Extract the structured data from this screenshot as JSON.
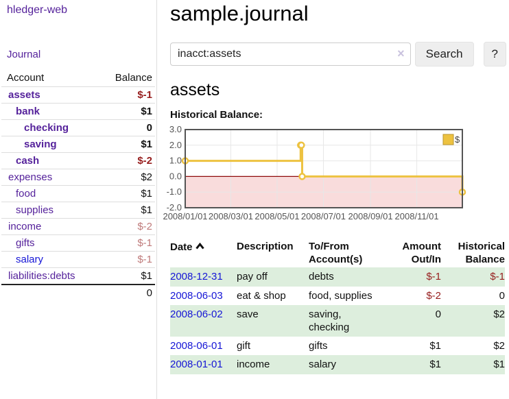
{
  "app": {
    "title": "hledger-web"
  },
  "sidebar": {
    "nav_journal": "Journal",
    "table": {
      "headers": {
        "account": "Account",
        "balance": "Balance"
      },
      "rows": [
        {
          "account": "assets",
          "balance": "$-1"
        },
        {
          "account": "bank",
          "balance": "$1"
        },
        {
          "account": "checking",
          "balance": "0"
        },
        {
          "account": "saving",
          "balance": "$1"
        },
        {
          "account": "cash",
          "balance": "$-2"
        },
        {
          "account": "expenses",
          "balance": "$2"
        },
        {
          "account": "food",
          "balance": "$1"
        },
        {
          "account": "supplies",
          "balance": "$1"
        },
        {
          "account": "income",
          "balance": "$-2"
        },
        {
          "account": "gifts",
          "balance": "$-1"
        },
        {
          "account": "salary",
          "balance": "$-1"
        },
        {
          "account": "liabilities:debts",
          "balance": "$1"
        }
      ],
      "total": "0"
    }
  },
  "main": {
    "title": "sample.journal",
    "search": {
      "value": "inacct:assets",
      "clear_icon": "×",
      "button": "Search",
      "help_button": "?"
    },
    "section_title": "assets",
    "chart_heading": "Historical Balance:"
  },
  "chart_data": {
    "type": "line",
    "step": true,
    "title": "Historical Balance:",
    "x_range": [
      "2008-01-01",
      "2008-12-31"
    ],
    "ylim": [
      -2,
      3
    ],
    "y_ticks": [
      3,
      2,
      1,
      0,
      -1,
      -2
    ],
    "x_ticks": [
      {
        "date": "2008-01-01",
        "label": "2008/01/01"
      },
      {
        "date": "2008-03-01",
        "label": "2008/03/01"
      },
      {
        "date": "2008-05-01",
        "label": "2008/05/01"
      },
      {
        "date": "2008-07-01",
        "label": "2008/07/01"
      },
      {
        "date": "2008-09-01",
        "label": "2008/09/01"
      },
      {
        "date": "2008-11-01",
        "label": "2008/11/01"
      }
    ],
    "series": [
      {
        "name": "$",
        "color": "#edc240",
        "points": [
          {
            "date": "2008-01-01",
            "value": 1
          },
          {
            "date": "2008-06-01",
            "value": 2
          },
          {
            "date": "2008-06-02",
            "value": 2
          },
          {
            "date": "2008-06-03",
            "value": 0
          },
          {
            "date": "2008-12-31",
            "value": -1
          }
        ]
      }
    ],
    "negative_fill": "#f9dcdc",
    "zero_line_color": "#8f0b0b",
    "grid": true,
    "legend_position": "top-right"
  },
  "register": {
    "headers": {
      "date": "Date",
      "description": "Description",
      "tofrom": "To/From Account(s)",
      "amount": "Amount Out/In",
      "balance": "Historical Balance"
    },
    "rows": [
      {
        "date": "2008-12-31",
        "description": "pay off",
        "accounts": "debts",
        "amount": "$-1",
        "balance": "$-1"
      },
      {
        "date": "2008-06-03",
        "description": "eat & shop",
        "accounts": "food, supplies",
        "amount": "$-2",
        "balance": "0"
      },
      {
        "date": "2008-06-02",
        "description": "save",
        "accounts": "saving, checking",
        "amount": "0",
        "balance": "$2"
      },
      {
        "date": "2008-06-01",
        "description": "gift",
        "accounts": "gifts",
        "amount": "$1",
        "balance": "$2"
      },
      {
        "date": "2008-01-01",
        "description": "income",
        "accounts": "salary",
        "amount": "$1",
        "balance": "$1"
      }
    ]
  },
  "colors": {
    "link_purple": "#55229b",
    "link_blue": "#1515d6",
    "negative_strong": "#961d1d",
    "negative_soft": "#bf7a7a",
    "row_stripe_green": "#ddeedd",
    "chart_line_gold": "#edc240",
    "chart_negative_fill": "#f9dcdc",
    "chart_zero_line": "#8f0b0b"
  }
}
